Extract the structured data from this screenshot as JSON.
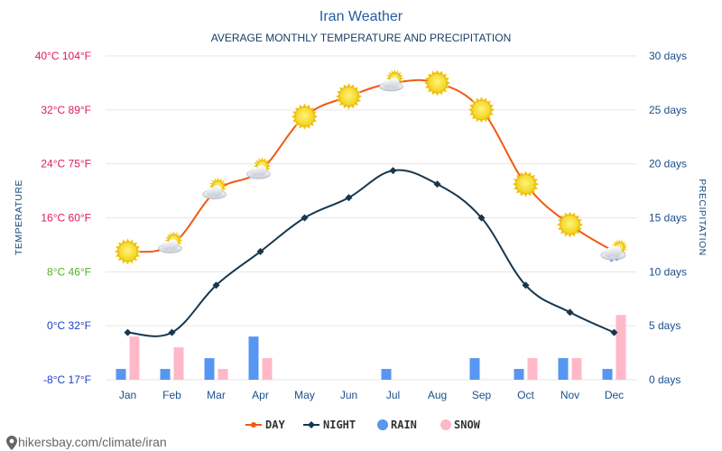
{
  "chart_data": {
    "type": "line",
    "title": "Iran Weather",
    "subtitle": "AVERAGE MONTHLY TEMPERATURE AND PRECIPITATION",
    "ylabel_left": "TEMPERATURE",
    "ylabel_right": "PRECIPITATION",
    "categories": [
      "Jan",
      "Feb",
      "Mar",
      "Apr",
      "May",
      "Jun",
      "Jul",
      "Aug",
      "Sep",
      "Oct",
      "Nov",
      "Dec"
    ],
    "left_axis": {
      "range_c": [
        -8,
        40
      ],
      "ticks": [
        {
          "c": 40,
          "label": "40°C 104°F",
          "color": "#e0195a"
        },
        {
          "c": 32,
          "label": "32°C 89°F",
          "color": "#e0195a"
        },
        {
          "c": 24,
          "label": "24°C 75°F",
          "color": "#e0195a"
        },
        {
          "c": 16,
          "label": "16°C 60°F",
          "color": "#e0195a"
        },
        {
          "c": 8,
          "label": "8°C 46°F",
          "color": "#53b324"
        },
        {
          "c": 0,
          "label": "0°C 32°F",
          "color": "#1a3fc4"
        },
        {
          "c": -8,
          "label": "-8°C 17°F",
          "color": "#1a3fc4"
        }
      ]
    },
    "right_axis": {
      "range_days": [
        0,
        30
      ],
      "ticks": [
        {
          "v": 30,
          "label": "30 days"
        },
        {
          "v": 25,
          "label": "25 days"
        },
        {
          "v": 20,
          "label": "20 days"
        },
        {
          "v": 15,
          "label": "15 days"
        },
        {
          "v": 10,
          "label": "10 days"
        },
        {
          "v": 5,
          "label": "5 days"
        },
        {
          "v": 0,
          "label": "0 days"
        }
      ]
    },
    "series": [
      {
        "name": "DAY",
        "unit": "°C",
        "color": "#f05a14",
        "values": [
          11,
          12,
          20,
          23,
          31,
          34,
          36,
          36,
          32,
          21,
          15,
          11
        ],
        "icons": [
          "sun",
          "partly",
          "partly",
          "partly",
          "sun",
          "sun",
          "partly",
          "sun",
          "sun",
          "sun",
          "sun",
          "snow-cloud"
        ]
      },
      {
        "name": "NIGHT",
        "unit": "°C",
        "color": "#17374d",
        "values": [
          -1,
          -1,
          6,
          11,
          16,
          19,
          23,
          21,
          16,
          6,
          2,
          -1
        ]
      },
      {
        "name": "RAIN",
        "unit": "days",
        "color": "#5796f2",
        "values": [
          1,
          1,
          2,
          4,
          0,
          0,
          1,
          0,
          2,
          1,
          2,
          1
        ]
      },
      {
        "name": "SNOW",
        "unit": "days",
        "color": "#ffb8c8",
        "values": [
          4,
          3,
          1,
          2,
          0,
          0,
          0,
          0,
          0,
          2,
          2,
          6
        ]
      }
    ],
    "legend": {
      "position": "bottom-center",
      "items": [
        "DAY",
        "NIGHT",
        "RAIN",
        "SNOW"
      ]
    }
  },
  "source_url": "hikersbay.com/climate/iran",
  "colors": {
    "grid": "#e6e6e6",
    "month_label": "#1a4f8b",
    "right_tick": "#1a4f8b"
  }
}
